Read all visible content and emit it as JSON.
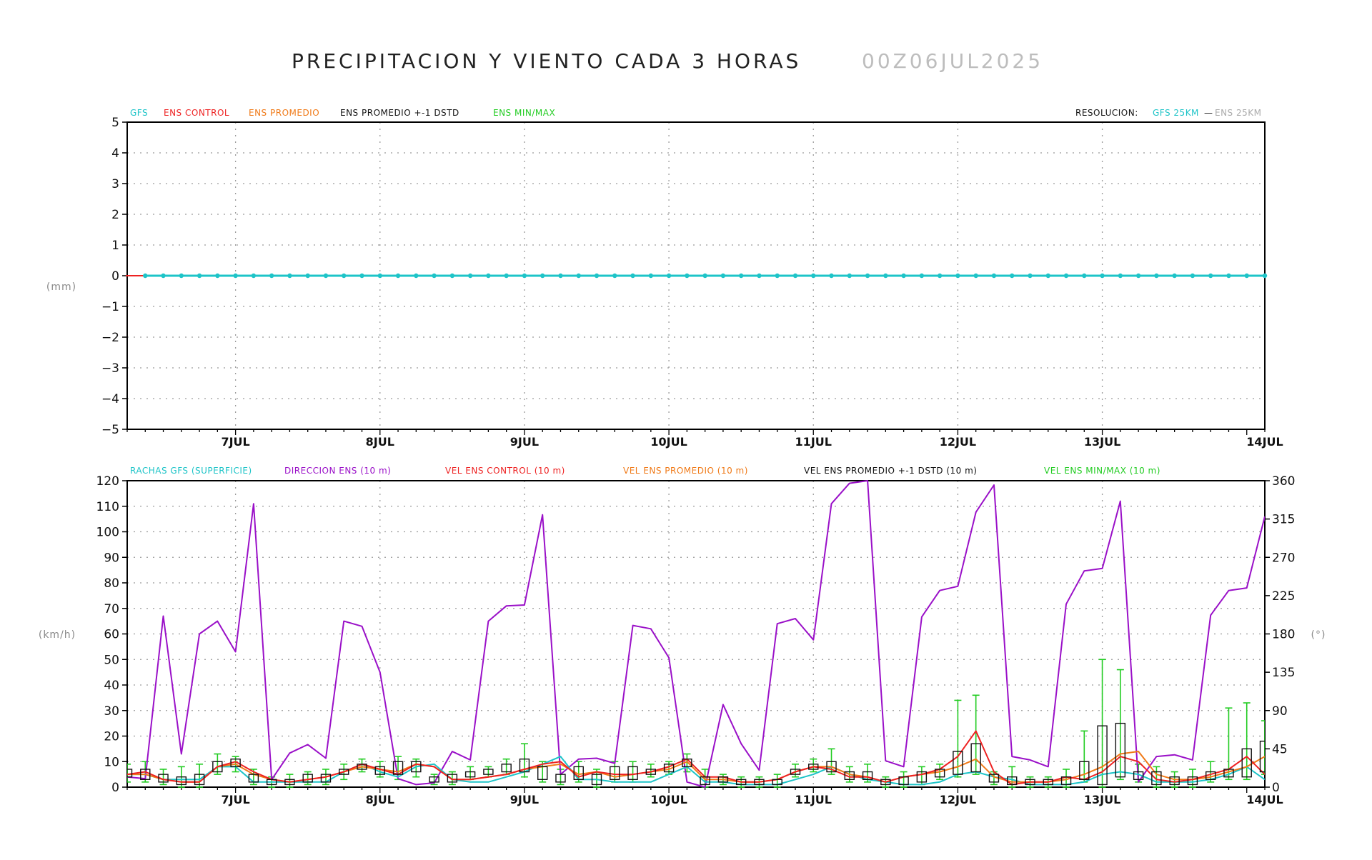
{
  "header": {
    "title": "PRECIPITACION Y VIENTO CADA 3 HORAS",
    "run": "00Z06JUL2025"
  },
  "colors": {
    "gfs": "#1ec4c8",
    "ens_control": "#ee2222",
    "ens_promedio": "#f07a18",
    "ens_std": "#111111",
    "ens_minmax": "#22cc22",
    "direccion": "#9a10c8",
    "resolucion_gfs": "#1ec4c8",
    "resolucion_ens": "#aaaaaa"
  },
  "x_labels": [
    "7JUL",
    "8JUL",
    "9JUL",
    "10JUL",
    "11JUL",
    "12JUL",
    "13JUL",
    "14JUL"
  ],
  "chart_data": [
    {
      "type": "line",
      "ylabel": "(mm)",
      "ylim": [
        -5,
        5
      ],
      "yticks": [
        5,
        4,
        3,
        2,
        1,
        0,
        -1,
        -2,
        -3,
        -4,
        -5
      ],
      "x_range_steps": [
        0,
        63
      ],
      "grid": true,
      "legend": {
        "placement": "top",
        "items": [
          {
            "label": "GFS",
            "color": "#1ec4c8"
          },
          {
            "label": "ENS CONTROL",
            "color": "#ee2222"
          },
          {
            "label": "ENS PROMEDIO",
            "color": "#f07a18"
          },
          {
            "label": "ENS PROMEDIO +-1 DSTD",
            "color": "#111111"
          },
          {
            "label": "ENS MIN/MAX",
            "color": "#22cc22"
          }
        ],
        "resolution_label": "RESOLUCION:",
        "resolution_gfs": "GFS 25KM",
        "resolution_sep": "—",
        "resolution_ens": "ENS 25KM"
      },
      "series": [
        {
          "name": "GFS",
          "constant": 0,
          "markers": true
        },
        {
          "name": "ENS CONTROL",
          "constant": 0
        }
      ]
    },
    {
      "type": "line",
      "ylabel": "(km/h)",
      "ylabel_right": "(°)",
      "ylim": [
        0,
        120
      ],
      "yticks": [
        120,
        110,
        100,
        90,
        80,
        70,
        60,
        50,
        40,
        30,
        20,
        10,
        0
      ],
      "ylim_right": [
        0,
        360
      ],
      "yticks_right": [
        360,
        315,
        270,
        225,
        180,
        135,
        90,
        45,
        0
      ],
      "x_range_steps": [
        0,
        63
      ],
      "grid": true,
      "legend": {
        "placement": "top",
        "items": [
          {
            "label": "RACHAS GFS (SUPERFICIE)",
            "color": "#1ec4c8"
          },
          {
            "label": "DIRECCION ENS (10 m)",
            "color": "#9a10c8"
          },
          {
            "label": "VEL ENS CONTROL (10 m)",
            "color": "#ee2222"
          },
          {
            "label": "VEL ENS PROMEDIO (10 m)",
            "color": "#f07a18"
          },
          {
            "label": "VEL ENS PROMEDIO +-1 DSTD (10 m)",
            "color": "#111111"
          },
          {
            "label": "VEL ENS MIN/MAX (10 m)",
            "color": "#22cc22"
          }
        ]
      },
      "direccion_deg": [
        12,
        10,
        201,
        39,
        180,
        195,
        159,
        333,
        9,
        40,
        50,
        34,
        195,
        189,
        135,
        10,
        3,
        5,
        42,
        32,
        195,
        213,
        214,
        320,
        15,
        33,
        34,
        28,
        190,
        186,
        152,
        6,
        0,
        97,
        51,
        20,
        192,
        198,
        173,
        333,
        357,
        360,
        31,
        24,
        200,
        231,
        236,
        323,
        355,
        36,
        32,
        24,
        215,
        254,
        257,
        336,
        6,
        36,
        38,
        32,
        202,
        231,
        234,
        318
      ],
      "rachas_gfs": [
        5,
        5,
        3,
        3,
        3,
        8,
        8,
        2,
        2,
        2,
        2,
        2,
        6,
        9,
        6,
        4,
        8,
        9,
        3,
        2,
        2,
        4,
        6,
        9,
        12,
        3,
        3,
        2,
        2,
        2,
        5,
        8,
        2,
        2,
        1,
        1,
        1,
        3,
        5,
        8,
        5,
        3,
        2,
        1,
        1,
        2,
        5,
        6,
        4,
        3,
        1,
        1,
        1,
        2,
        5,
        6,
        5,
        2,
        2,
        2,
        3,
        5,
        8,
        3
      ],
      "control": [
        5,
        6,
        3,
        2,
        2,
        8,
        10,
        6,
        3,
        2,
        3,
        4,
        6,
        9,
        7,
        5,
        9,
        8,
        3,
        3,
        4,
        5,
        7,
        9,
        10,
        4,
        6,
        5,
        5,
        6,
        8,
        11,
        4,
        4,
        2,
        2,
        3,
        6,
        8,
        7,
        4,
        4,
        2,
        4,
        5,
        7,
        12,
        22,
        6,
        1,
        2,
        2,
        4,
        3,
        6,
        12,
        10,
        3,
        2,
        3,
        5,
        7,
        12,
        5
      ],
      "promedio": [
        5,
        5,
        3,
        2,
        2,
        8,
        9,
        5,
        3,
        2,
        3,
        4,
        6,
        8,
        7,
        6,
        9,
        8,
        3,
        3,
        4,
        5,
        7,
        8,
        9,
        5,
        6,
        4,
        5,
        6,
        7,
        10,
        3,
        3,
        2,
        2,
        3,
        6,
        8,
        8,
        5,
        4,
        2,
        4,
        5,
        6,
        8,
        11,
        4,
        2,
        2,
        2,
        3,
        5,
        8,
        13,
        14,
        5,
        3,
        3,
        4,
        6,
        8,
        12
      ],
      "std": [
        [
          4,
          7
        ],
        [
          3,
          7
        ],
        [
          2,
          5
        ],
        [
          1,
          4
        ],
        [
          1,
          5
        ],
        [
          6,
          10
        ],
        [
          8,
          11
        ],
        [
          2,
          5
        ],
        [
          1,
          3
        ],
        [
          1,
          3
        ],
        [
          2,
          5
        ],
        [
          2,
          5
        ],
        [
          5,
          7
        ],
        [
          7,
          9
        ],
        [
          5,
          8
        ],
        [
          5,
          10
        ],
        [
          6,
          10
        ],
        [
          2,
          4
        ],
        [
          2,
          5
        ],
        [
          4,
          6
        ],
        [
          5,
          7
        ],
        [
          6,
          9
        ],
        [
          6,
          11
        ],
        [
          3,
          8
        ],
        [
          2,
          5
        ],
        [
          3,
          8
        ],
        [
          1,
          5
        ],
        [
          3,
          8
        ],
        [
          3,
          8
        ],
        [
          5,
          7
        ],
        [
          6,
          9
        ],
        [
          8,
          11
        ],
        [
          1,
          4
        ],
        [
          2,
          4
        ],
        [
          1,
          3
        ],
        [
          1,
          3
        ],
        [
          1,
          3
        ],
        [
          5,
          7
        ],
        [
          7,
          9
        ],
        [
          6,
          10
        ],
        [
          3,
          6
        ],
        [
          3,
          6
        ],
        [
          1,
          3
        ],
        [
          1,
          4
        ],
        [
          2,
          6
        ],
        [
          4,
          7
        ],
        [
          5,
          14
        ],
        [
          6,
          17
        ],
        [
          2,
          5
        ],
        [
          1,
          4
        ],
        [
          1,
          3
        ],
        [
          1,
          3
        ],
        [
          1,
          4
        ],
        [
          3,
          10
        ],
        [
          1,
          24
        ],
        [
          4,
          25
        ],
        [
          3,
          6
        ],
        [
          1,
          6
        ],
        [
          1,
          4
        ],
        [
          1,
          4
        ],
        [
          3,
          6
        ],
        [
          4,
          7
        ],
        [
          4,
          15
        ],
        [
          6,
          18
        ]
      ],
      "minmax": [
        [
          2,
          9
        ],
        [
          2,
          10
        ],
        [
          1,
          7
        ],
        [
          0,
          8
        ],
        [
          0,
          9
        ],
        [
          5,
          13
        ],
        [
          6,
          12
        ],
        [
          1,
          7
        ],
        [
          0,
          4
        ],
        [
          0,
          5
        ],
        [
          1,
          6
        ],
        [
          1,
          7
        ],
        [
          3,
          9
        ],
        [
          6,
          11
        ],
        [
          4,
          10
        ],
        [
          3,
          12
        ],
        [
          4,
          11
        ],
        [
          1,
          5
        ],
        [
          1,
          6
        ],
        [
          3,
          8
        ],
        [
          4,
          8
        ],
        [
          5,
          11
        ],
        [
          4,
          17
        ],
        [
          2,
          10
        ],
        [
          1,
          7
        ],
        [
          2,
          10
        ],
        [
          0,
          7
        ],
        [
          2,
          10
        ],
        [
          2,
          10
        ],
        [
          4,
          9
        ],
        [
          5,
          10
        ],
        [
          6,
          13
        ],
        [
          0,
          7
        ],
        [
          1,
          5
        ],
        [
          0,
          4
        ],
        [
          0,
          4
        ],
        [
          0,
          5
        ],
        [
          4,
          9
        ],
        [
          6,
          11
        ],
        [
          5,
          15
        ],
        [
          2,
          8
        ],
        [
          2,
          9
        ],
        [
          0,
          4
        ],
        [
          0,
          6
        ],
        [
          1,
          8
        ],
        [
          3,
          9
        ],
        [
          4,
          34
        ],
        [
          5,
          36
        ],
        [
          1,
          6
        ],
        [
          0,
          8
        ],
        [
          0,
          4
        ],
        [
          0,
          4
        ],
        [
          0,
          7
        ],
        [
          2,
          22
        ],
        [
          0,
          50
        ],
        [
          3,
          46
        ],
        [
          2,
          9
        ],
        [
          0,
          8
        ],
        [
          0,
          6
        ],
        [
          0,
          7
        ],
        [
          2,
          10
        ],
        [
          3,
          31
        ],
        [
          3,
          33
        ],
        [
          5,
          26
        ]
      ]
    }
  ]
}
